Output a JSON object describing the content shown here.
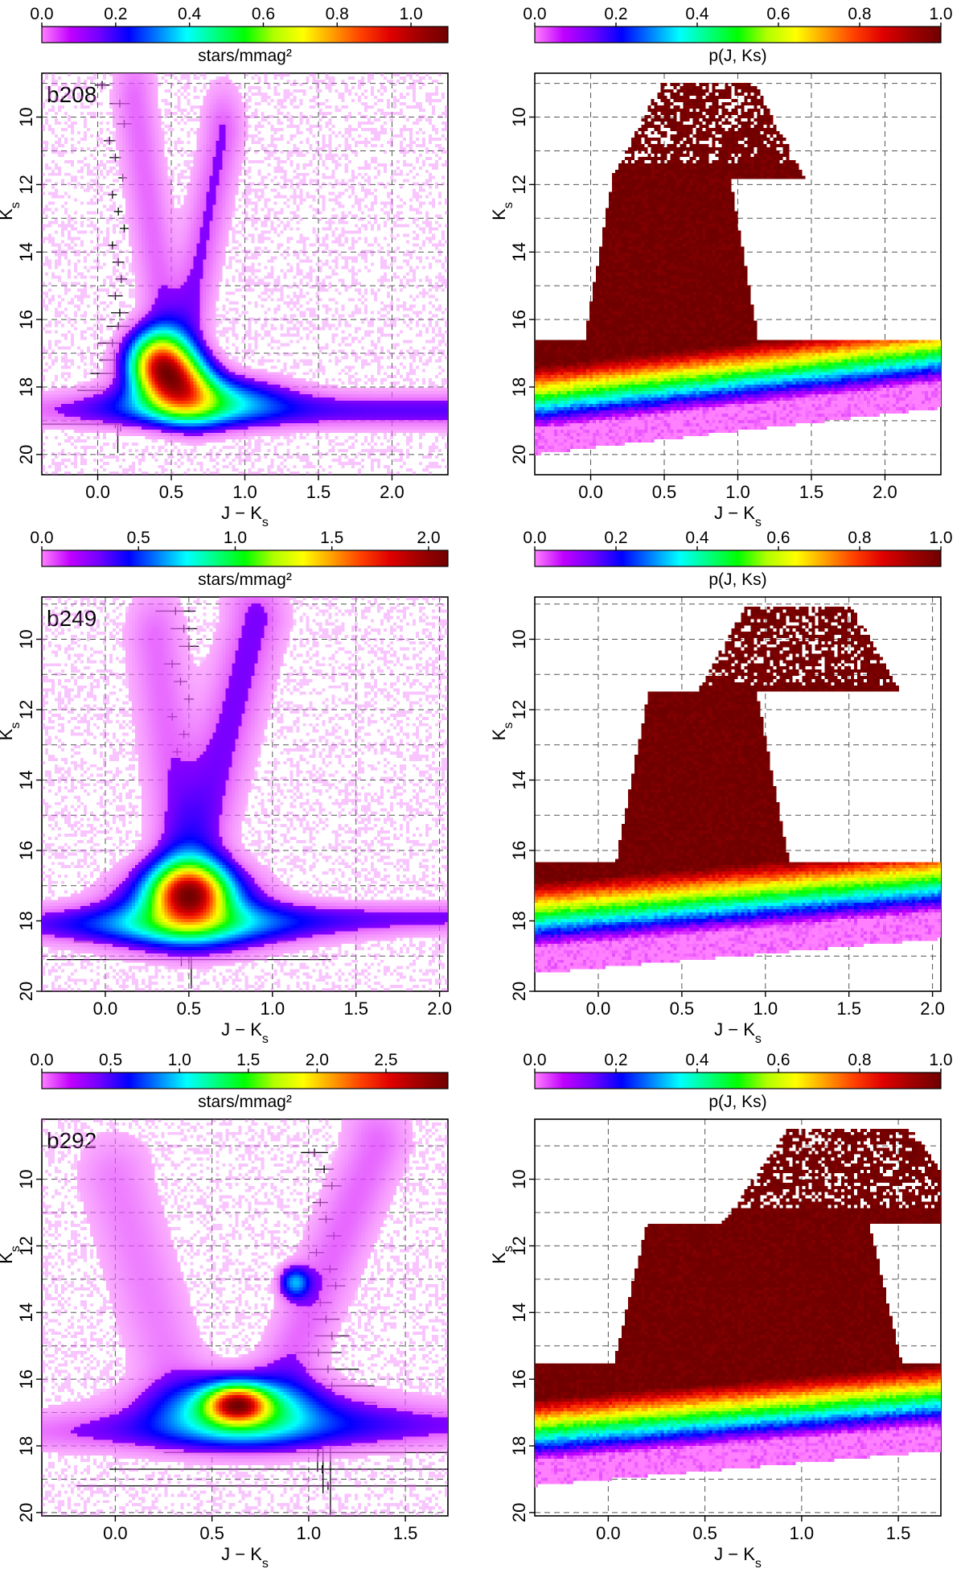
{
  "figure": {
    "colors": {
      "spectrum": [
        "#ff80ff",
        "#c000ff",
        "#7000ff",
        "#0000ff",
        "#0080ff",
        "#00ffff",
        "#00ff80",
        "#00ff00",
        "#b0ff00",
        "#ffff00",
        "#ffa000",
        "#ff4000",
        "#e00000",
        "#a00000",
        "#700000"
      ],
      "grid": "#555555",
      "axis": "#000000"
    }
  },
  "chart_data": [
    {
      "id": "b208-density",
      "type": "heatmap",
      "panel_label": "b208",
      "colorbar": {
        "label": "stars/mmag²",
        "ticks": [
          "0.0",
          "0.2",
          "0.4",
          "0.6",
          "0.8",
          "1.0"
        ],
        "range": [
          0.0,
          1.1
        ]
      },
      "xlabel": "J − Ks",
      "ylabel": "Ks",
      "xlim": [
        -0.38,
        2.38
      ],
      "ylim": [
        20.6,
        8.7
      ],
      "xticks": [
        0.0,
        0.5,
        1.0,
        1.5,
        2.0
      ],
      "xtick_labels": [
        "0.0",
        "0.5",
        "1.0",
        "1.5",
        "2.0"
      ],
      "yticks": [
        10,
        12,
        14,
        16,
        18,
        20
      ],
      "ytick_labels": [
        "10",
        "12",
        "14",
        "16",
        "18",
        "20"
      ],
      "grid": {
        "x": [
          0.0,
          0.5,
          1.0,
          1.5,
          2.0
        ],
        "y": [
          9,
          10,
          11,
          12,
          13,
          14,
          15,
          16,
          17,
          18,
          19,
          20
        ]
      },
      "error_bars": [
        {
          "x": 0.03,
          "y": 9.05,
          "xerr": 0.05
        },
        {
          "x": 0.15,
          "y": 9.6,
          "xerr": 0.07
        },
        {
          "x": 0.18,
          "y": 10.2,
          "xerr": 0.05
        },
        {
          "x": 0.08,
          "y": 10.7,
          "xerr": 0.04
        },
        {
          "x": 0.12,
          "y": 11.2,
          "xerr": 0.04
        },
        {
          "x": 0.17,
          "y": 11.8,
          "xerr": 0.03
        },
        {
          "x": 0.1,
          "y": 12.3,
          "xerr": 0.03
        },
        {
          "x": 0.14,
          "y": 12.8,
          "xerr": 0.03
        },
        {
          "x": 0.18,
          "y": 13.3,
          "xerr": 0.03
        },
        {
          "x": 0.1,
          "y": 13.8,
          "xerr": 0.03
        },
        {
          "x": 0.14,
          "y": 14.3,
          "xerr": 0.04
        },
        {
          "x": 0.16,
          "y": 14.8,
          "xerr": 0.04
        },
        {
          "x": 0.12,
          "y": 15.3,
          "xerr": 0.05
        },
        {
          "x": 0.15,
          "y": 15.8,
          "xerr": 0.06
        },
        {
          "x": 0.14,
          "y": 16.2,
          "xerr": 0.08
        },
        {
          "x": 0.1,
          "y": 16.7,
          "xerr": 0.1
        },
        {
          "x": 0.15,
          "y": 17.2,
          "xerr": 0.14
        },
        {
          "x": 0.13,
          "y": 17.6,
          "xerr": 0.18
        },
        {
          "x": 0.12,
          "y": 18.1,
          "xerr": 0.26
        },
        {
          "x": 0.15,
          "y": 18.6,
          "xerr": 0.36
        },
        {
          "x": 0.12,
          "y": 19.1,
          "xerr": 0.5
        }
      ],
      "features": [
        {
          "kind": "peak",
          "x": 0.52,
          "y": 17.8,
          "sx": 0.16,
          "sy": 0.65,
          "tilt": 0.5,
          "amp": 1.0
        },
        {
          "kind": "blob",
          "x": 0.42,
          "y": 17.2,
          "sx": 0.12,
          "sy": 0.6,
          "amp": 0.55
        },
        {
          "kind": "ridge",
          "x": 0.7,
          "y": 18.4,
          "sx": 0.35,
          "sy": 0.45,
          "amp": 0.35
        },
        {
          "kind": "branch",
          "x0": 0.45,
          "y0": 16.0,
          "x1": 0.25,
          "y1": 9.5,
          "width": 0.1,
          "amp": 0.08
        },
        {
          "kind": "branch",
          "x0": 0.6,
          "y0": 16.5,
          "x1": 0.85,
          "y1": 10.5,
          "width": 0.1,
          "amp": 0.09
        },
        {
          "kind": "tail",
          "x0": 0.6,
          "y0": 18.7,
          "x1": 2.4,
          "y1": 18.7,
          "width": 0.35,
          "amp": 0.12
        }
      ]
    },
    {
      "id": "b208-prob",
      "type": "heatmap",
      "colorbar": {
        "label": "p(J, Ks)",
        "ticks": [
          "0.0",
          "0.2",
          "0.4",
          "0.6",
          "0.8",
          "1.0"
        ],
        "range": [
          0.0,
          1.0
        ]
      },
      "xlabel": "J − Ks",
      "ylabel": "Ks",
      "xlim": [
        -0.38,
        2.38
      ],
      "ylim": [
        20.6,
        8.7
      ],
      "xticks": [
        0.0,
        0.5,
        1.0,
        1.5,
        2.0
      ],
      "xtick_labels": [
        "0.0",
        "0.5",
        "1.0",
        "1.5",
        "2.0"
      ],
      "yticks": [
        10,
        12,
        14,
        16,
        18,
        20
      ],
      "ytick_labels": [
        "10",
        "12",
        "14",
        "16",
        "18",
        "20"
      ],
      "grid": {
        "x": [
          0.0,
          0.5,
          1.0,
          1.5,
          2.0
        ],
        "y": [
          9,
          10,
          11,
          12,
          13,
          14,
          15,
          16,
          17,
          18,
          19,
          20
        ]
      },
      "shape": {
        "top": 11.8,
        "mid_x0": 0.15,
        "mid_x1": 0.95,
        "base_y": 16.6,
        "band_y": 18.9,
        "slope": 0.55,
        "tip_y": 9.0,
        "tip_x": 0.8
      }
    },
    {
      "id": "b249-density",
      "type": "heatmap",
      "panel_label": "b249",
      "colorbar": {
        "label": "stars/mmag²",
        "ticks": [
          "0.0",
          "0.5",
          "1.0",
          "1.5",
          "2.0"
        ],
        "range": [
          0.0,
          2.1
        ]
      },
      "xlabel": "J − Ks",
      "ylabel": "Ks",
      "xlim": [
        -0.38,
        2.05
      ],
      "ylim": [
        20.0,
        8.8
      ],
      "xticks": [
        0.0,
        0.5,
        1.0,
        1.5,
        2.0
      ],
      "xtick_labels": [
        "0.0",
        "0.5",
        "1.0",
        "1.5",
        "2.0"
      ],
      "yticks": [
        10,
        12,
        14,
        16,
        18,
        20
      ],
      "ytick_labels": [
        "10",
        "12",
        "14",
        "16",
        "18",
        "20"
      ],
      "grid": {
        "x": [
          0.0,
          0.5,
          1.0,
          1.5,
          2.0
        ],
        "y": [
          9,
          10,
          11,
          12,
          13,
          14,
          15,
          16,
          17,
          18,
          19
        ]
      },
      "error_bars": [
        {
          "x": 0.42,
          "y": 9.2,
          "xerr": 0.12
        },
        {
          "x": 0.47,
          "y": 9.7,
          "xerr": 0.08
        },
        {
          "x": 0.5,
          "y": 10.2,
          "xerr": 0.06
        },
        {
          "x": 0.4,
          "y": 10.7,
          "xerr": 0.05
        },
        {
          "x": 0.45,
          "y": 11.2,
          "xerr": 0.04
        },
        {
          "x": 0.5,
          "y": 11.7,
          "xerr": 0.03
        },
        {
          "x": 0.4,
          "y": 12.2,
          "xerr": 0.03
        },
        {
          "x": 0.47,
          "y": 12.7,
          "xerr": 0.03
        },
        {
          "x": 0.43,
          "y": 13.2,
          "xerr": 0.03
        },
        {
          "x": 0.4,
          "y": 13.7,
          "xerr": 0.03
        },
        {
          "x": 0.45,
          "y": 14.2,
          "xerr": 0.03
        },
        {
          "x": 0.42,
          "y": 14.7,
          "xerr": 0.04
        },
        {
          "x": 0.4,
          "y": 15.2,
          "xerr": 0.05
        },
        {
          "x": 0.45,
          "y": 15.7,
          "xerr": 0.06
        },
        {
          "x": 0.5,
          "y": 16.2,
          "xerr": 0.1
        },
        {
          "x": 0.47,
          "y": 16.7,
          "xerr": 0.14
        },
        {
          "x": 0.5,
          "y": 17.1,
          "xerr": 0.22
        },
        {
          "x": 0.47,
          "y": 17.6,
          "xerr": 0.32
        },
        {
          "x": 0.45,
          "y": 18.1,
          "xerr": 0.46
        },
        {
          "x": 0.45,
          "y": 18.6,
          "xerr": 0.64
        },
        {
          "x": 0.5,
          "y": 19.1,
          "xerr": 0.85
        }
      ],
      "features": [
        {
          "kind": "peak",
          "x": 0.5,
          "y": 17.2,
          "sx": 0.14,
          "sy": 0.55,
          "tilt": 0.0,
          "amp": 1.0
        },
        {
          "kind": "blob",
          "x": 0.5,
          "y": 17.6,
          "sx": 0.25,
          "sy": 0.7,
          "amp": 0.4
        },
        {
          "kind": "ridge",
          "x": 0.5,
          "y": 18.1,
          "sx": 0.5,
          "sy": 0.45,
          "amp": 0.2
        },
        {
          "kind": "branch",
          "x0": 0.45,
          "y0": 16.0,
          "x1": 0.3,
          "y1": 10.0,
          "width": 0.12,
          "amp": 0.08
        },
        {
          "kind": "branch",
          "x0": 0.55,
          "y0": 16.0,
          "x1": 0.9,
          "y1": 9.5,
          "width": 0.13,
          "amp": 0.1
        },
        {
          "kind": "tail",
          "x0": 0.3,
          "y0": 18.1,
          "x1": 2.1,
          "y1": 17.9,
          "width": 0.3,
          "amp": 0.1
        }
      ]
    },
    {
      "id": "b249-prob",
      "type": "heatmap",
      "colorbar": {
        "label": "p(J, Ks)",
        "ticks": [
          "0.0",
          "0.2",
          "0.4",
          "0.6",
          "0.8",
          "1.0"
        ],
        "range": [
          0.0,
          1.0
        ]
      },
      "xlabel": "J − Ks",
      "ylabel": "Ks",
      "xlim": [
        -0.38,
        2.05
      ],
      "ylim": [
        20.0,
        8.8
      ],
      "xticks": [
        0.0,
        0.5,
        1.0,
        1.5,
        2.0
      ],
      "xtick_labels": [
        "0.0",
        "0.5",
        "1.0",
        "1.5",
        "2.0"
      ],
      "yticks": [
        10,
        12,
        14,
        16,
        18,
        20
      ],
      "ytick_labels": [
        "10",
        "12",
        "14",
        "16",
        "18",
        "20"
      ],
      "grid": {
        "x": [
          0.0,
          0.5,
          1.0,
          1.5,
          2.0
        ],
        "y": [
          9,
          10,
          11,
          12,
          13,
          14,
          15,
          16,
          17,
          18,
          19
        ]
      },
      "shape": {
        "top": 11.5,
        "mid_x0": 0.3,
        "mid_x1": 0.95,
        "base_y": 16.3,
        "band_y": 18.4,
        "slope": 0.45,
        "tip_y": 9.1,
        "tip_x": 1.2
      }
    },
    {
      "id": "b292-density",
      "type": "heatmap",
      "panel_label": "b292",
      "colorbar": {
        "label": "stars/mmag²",
        "ticks": [
          "0.0",
          "0.5",
          "1.0",
          "1.5",
          "2.0",
          "2.5"
        ],
        "range": [
          0.0,
          2.95
        ]
      },
      "xlabel": "J − Ks",
      "ylabel": "Ks",
      "xlim": [
        -0.38,
        1.72
      ],
      "ylim": [
        20.1,
        8.2
      ],
      "xticks": [
        0.0,
        0.5,
        1.0,
        1.5
      ],
      "xtick_labels": [
        "0.0",
        "0.5",
        "1.0",
        "1.5"
      ],
      "yticks": [
        10,
        12,
        14,
        16,
        18,
        20
      ],
      "ytick_labels": [
        "10",
        "12",
        "14",
        "16",
        "18",
        "20"
      ],
      "grid": {
        "x": [
          0.0,
          0.5,
          1.0,
          1.5
        ],
        "y": [
          9,
          10,
          11,
          12,
          13,
          14,
          15,
          16,
          17,
          18,
          19,
          20
        ]
      },
      "error_bars": [
        {
          "x": 1.03,
          "y": 9.2,
          "xerr": 0.07
        },
        {
          "x": 1.08,
          "y": 9.7,
          "xerr": 0.05
        },
        {
          "x": 1.12,
          "y": 10.2,
          "xerr": 0.05
        },
        {
          "x": 1.06,
          "y": 10.7,
          "xerr": 0.04
        },
        {
          "x": 1.09,
          "y": 11.2,
          "xerr": 0.04
        },
        {
          "x": 1.13,
          "y": 11.7,
          "xerr": 0.04
        },
        {
          "x": 1.04,
          "y": 12.2,
          "xerr": 0.04
        },
        {
          "x": 1.11,
          "y": 12.7,
          "xerr": 0.04
        },
        {
          "x": 1.14,
          "y": 13.2,
          "xerr": 0.05
        },
        {
          "x": 1.06,
          "y": 13.7,
          "xerr": 0.06
        },
        {
          "x": 1.09,
          "y": 14.2,
          "xerr": 0.07
        },
        {
          "x": 1.12,
          "y": 14.7,
          "xerr": 0.09
        },
        {
          "x": 1.05,
          "y": 15.2,
          "xerr": 0.12
        },
        {
          "x": 1.1,
          "y": 15.7,
          "xerr": 0.16
        },
        {
          "x": 1.12,
          "y": 16.2,
          "xerr": 0.22
        },
        {
          "x": 1.05,
          "y": 16.7,
          "xerr": 0.3
        },
        {
          "x": 1.08,
          "y": 17.2,
          "xerr": 0.4
        },
        {
          "x": 1.06,
          "y": 17.7,
          "xerr": 0.55
        },
        {
          "x": 1.05,
          "y": 18.2,
          "xerr": 0.8
        },
        {
          "x": 1.07,
          "y": 18.7,
          "xerr": 1.1
        },
        {
          "x": 1.1,
          "y": 19.2,
          "xerr": 1.3
        }
      ],
      "features": [
        {
          "kind": "peak",
          "x": 0.63,
          "y": 16.75,
          "sx": 0.1,
          "sy": 0.35,
          "tilt": 0.0,
          "amp": 1.0
        },
        {
          "kind": "blob",
          "x": 0.65,
          "y": 16.9,
          "sx": 0.22,
          "sy": 0.6,
          "amp": 0.45
        },
        {
          "kind": "blob",
          "x": 0.93,
          "y": 13.1,
          "sx": 0.05,
          "sy": 0.3,
          "amp": 0.3
        },
        {
          "kind": "ridge",
          "x": 0.75,
          "y": 17.2,
          "sx": 0.5,
          "sy": 0.6,
          "amp": 0.18
        },
        {
          "kind": "branch",
          "x0": 0.3,
          "y0": 16.0,
          "x1": 0.0,
          "y1": 10.0,
          "width": 0.14,
          "amp": 0.07
        },
        {
          "kind": "branch",
          "x0": 0.9,
          "y0": 15.5,
          "x1": 1.35,
          "y1": 9.0,
          "width": 0.12,
          "amp": 0.09
        },
        {
          "kind": "tail",
          "x0": 0.2,
          "y0": 17.6,
          "x1": 1.75,
          "y1": 17.4,
          "width": 0.4,
          "amp": 0.08
        }
      ]
    },
    {
      "id": "b292-prob",
      "type": "heatmap",
      "colorbar": {
        "label": "p(J, Ks)",
        "ticks": [
          "0.0",
          "0.2",
          "0.4",
          "0.6",
          "0.8",
          "1.0"
        ],
        "range": [
          0.0,
          1.0
        ]
      },
      "xlabel": "J − Ks",
      "ylabel": "Ks",
      "xlim": [
        -0.38,
        1.72
      ],
      "ylim": [
        20.1,
        8.2
      ],
      "xticks": [
        0.0,
        0.5,
        1.0,
        1.5
      ],
      "xtick_labels": [
        "0.0",
        "0.5",
        "1.0",
        "1.5"
      ],
      "yticks": [
        10,
        12,
        14,
        16,
        18,
        20
      ],
      "ytick_labels": [
        "10",
        "12",
        "14",
        "16",
        "18",
        "20"
      ],
      "grid": {
        "x": [
          0.0,
          0.5,
          1.0,
          1.5
        ],
        "y": [
          9,
          10,
          11,
          12,
          13,
          14,
          15,
          16,
          17,
          18,
          19,
          20
        ]
      },
      "shape": {
        "top": 11.3,
        "mid_x0": 0.2,
        "mid_x1": 1.35,
        "base_y": 15.5,
        "band_y": 18.1,
        "slope": 0.55,
        "tip_y": 8.5,
        "tip_x": 1.25
      }
    }
  ]
}
